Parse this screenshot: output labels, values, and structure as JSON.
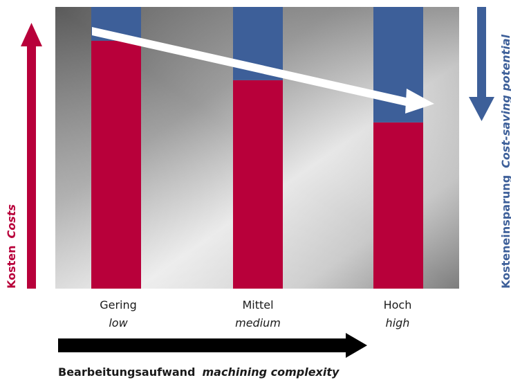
{
  "chart_data": {
    "type": "bar",
    "categories": [
      {
        "de": "Gering",
        "en": "low"
      },
      {
        "de": "Mittel",
        "en": "medium"
      },
      {
        "de": "Hoch",
        "en": "high"
      }
    ],
    "series": [
      {
        "values": [
          88,
          74,
          59
        ]
      },
      {
        "values": [
          12,
          26,
          41
        ]
      }
    ],
    "ylim": [
      0,
      100
    ],
    "stacked": true,
    "grid": false,
    "y_axis_left": {
      "bold": "Kosten",
      "italic": "Costs"
    },
    "y_axis_right": {
      "bold": "Kosteneinsparung",
      "italic": "Cost-saving potential"
    },
    "x_axis": {
      "bold": "Bearbeitungsaufwand",
      "italic": "machining complexity"
    },
    "colors": {
      "cost": "#b8003a",
      "saving": "#3d5f99",
      "complexity_arrow": "#000000",
      "trend_arrow": "#ffffff"
    }
  }
}
